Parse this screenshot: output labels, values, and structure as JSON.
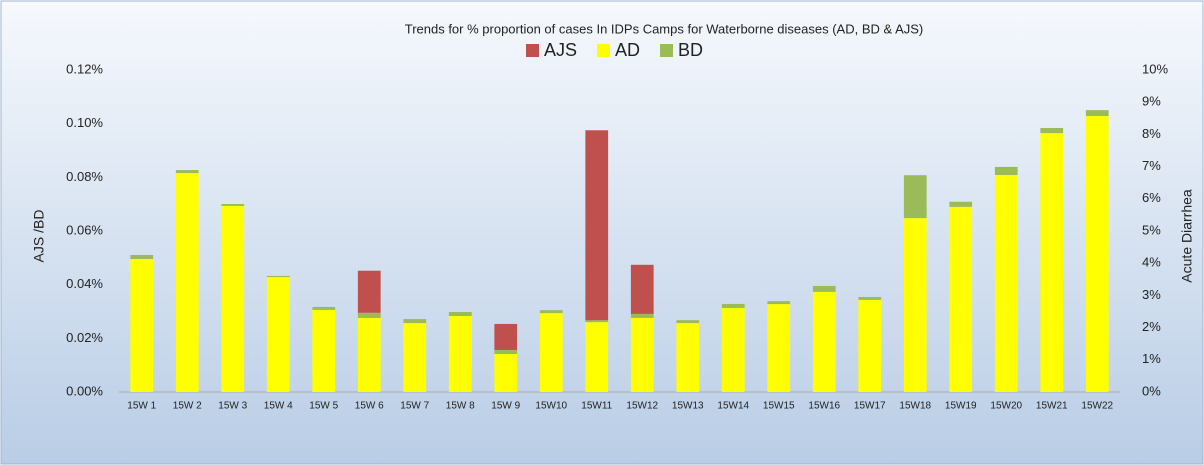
{
  "chart_data": {
    "type": "bar",
    "stacked": true,
    "title": "Trends for % proportion of cases In IDPs Camps for Waterborne diseases (AD, BD & AJS)",
    "y_label": "AJS /BD",
    "y2_label": "Acute Diarrhea",
    "categories": [
      "15W 1",
      "15W 2",
      "15W 3",
      "15W 4",
      "15W 5",
      "15W 6",
      "15W 7",
      "15W 8",
      "15W 9",
      "15W10",
      "15W11",
      "15W12",
      "15W13",
      "15W14",
      "15W15",
      "15W16",
      "15W17",
      "15W18",
      "15W19",
      "15W20",
      "15W21",
      "15W22"
    ],
    "series": [
      {
        "name": "AJS",
        "color": "#c0504d",
        "axis": "y",
        "values": [
          null,
          null,
          null,
          null,
          null,
          0.0157,
          null,
          null,
          0.0097,
          null,
          0.0708,
          0.0183,
          null,
          null,
          null,
          null,
          null,
          null,
          null,
          null,
          null,
          null
        ]
      },
      {
        "name": "AD",
        "color": "#ffff00",
        "axis": "y2",
        "values": [
          4.13,
          6.8,
          5.78,
          3.57,
          2.55,
          2.3,
          2.14,
          2.36,
          1.18,
          2.45,
          2.17,
          2.3,
          2.14,
          2.61,
          2.73,
          3.11,
          2.86,
          5.4,
          5.75,
          6.74,
          8.04,
          8.57
        ]
      },
      {
        "name": "BD",
        "color": "#9bbb59",
        "axis": "y",
        "values": [
          0.0015,
          0.0011,
          0.0007,
          0.0004,
          0.0011,
          0.0019,
          0.0015,
          0.0015,
          0.0015,
          0.0011,
          0.0007,
          0.0015,
          0.0011,
          0.0015,
          0.0011,
          0.0022,
          0.0011,
          0.016,
          0.0019,
          0.003,
          0.0019,
          0.0022
        ]
      }
    ],
    "ylim": [
      0,
      0.12
    ],
    "yticks": [
      {
        "value": 0,
        "label": "0.00%"
      },
      {
        "value": 0.02,
        "label": "0.02%"
      },
      {
        "value": 0.04,
        "label": "0.04%"
      },
      {
        "value": 0.06,
        "label": "0.06%"
      },
      {
        "value": 0.08,
        "label": "0.08%"
      },
      {
        "value": 0.1,
        "label": "0.10%"
      },
      {
        "value": 0.12,
        "label": "0.12%"
      }
    ],
    "y2lim": [
      0,
      10
    ],
    "y2ticks": [
      {
        "value": 0,
        "label": "0%"
      },
      {
        "value": 1,
        "label": "1%"
      },
      {
        "value": 2,
        "label": "2%"
      },
      {
        "value": 3,
        "label": "3%"
      },
      {
        "value": 4,
        "label": "4%"
      },
      {
        "value": 5,
        "label": "5%"
      },
      {
        "value": 6,
        "label": "6%"
      },
      {
        "value": 7,
        "label": "7%"
      },
      {
        "value": 8,
        "label": "8%"
      },
      {
        "value": 9,
        "label": "9%"
      },
      {
        "value": 10,
        "label": "10%"
      }
    ],
    "legend": "top"
  }
}
